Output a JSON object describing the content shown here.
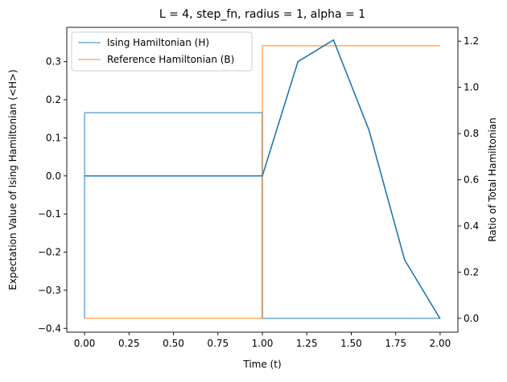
{
  "chart_data": {
    "type": "line",
    "title": "L = 4, step_fn, radius = 1, alpha = 1",
    "xlabel": "Time (t)",
    "ylabel_left": "Expectation Value of Ising Hamiltonian (<H>)",
    "ylabel_right": "Ratio of Total Hamiltonian",
    "xlim": [
      -0.1,
      2.1
    ],
    "ylim_left": [
      -0.41,
      0.39
    ],
    "ylim_right": [
      -0.06,
      1.26
    ],
    "x_ticks": [
      "0.00",
      "0.25",
      "0.50",
      "0.75",
      "1.00",
      "1.25",
      "1.50",
      "1.75",
      "2.00"
    ],
    "y_ticks_left": [
      "-0.4",
      "-0.3",
      "-0.2",
      "-0.1",
      "0.0",
      "0.1",
      "0.2",
      "0.3"
    ],
    "y_ticks_right": [
      "0.0",
      "0.2",
      "0.4",
      "0.6",
      "0.8",
      "1.0",
      "1.2"
    ],
    "grid": false,
    "legend_position": "top-left",
    "series": [
      {
        "name": "Ising Hamiltonian (H)",
        "axis": "right",
        "color": "#1f77b4",
        "opacity": 0.6,
        "drawstyle": "step",
        "x": [
          0.0,
          0.0,
          1.0,
          1.0,
          2.0
        ],
        "y": [
          0.0,
          0.89,
          0.89,
          0.0,
          0.0
        ]
      },
      {
        "name": "Reference Hamiltonian (B)",
        "axis": "right",
        "color": "#ff7f0e",
        "opacity": 0.6,
        "drawstyle": "step",
        "x": [
          0.0,
          1.0,
          1.0,
          2.0
        ],
        "y": [
          0.0,
          0.0,
          1.18,
          1.18
        ]
      },
      {
        "name": "",
        "axis": "left",
        "color": "#1f77b4",
        "opacity": 1.0,
        "drawstyle": "line",
        "x": [
          0.0,
          1.0,
          1.2,
          1.4,
          1.6,
          1.8,
          2.0
        ],
        "y": [
          0.0,
          0.0,
          0.3,
          0.357,
          0.12,
          -0.22,
          -0.375
        ]
      }
    ]
  }
}
